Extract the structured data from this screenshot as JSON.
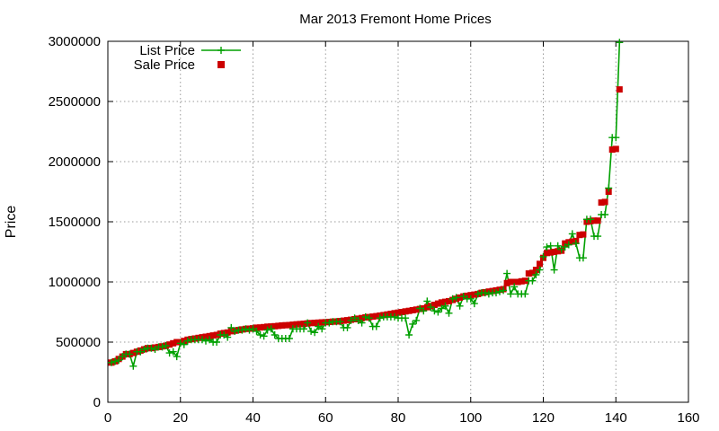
{
  "chart_data": {
    "type": "line",
    "title": "Mar 2013 Fremont Home Prices",
    "xlabel": "",
    "ylabel": "Price",
    "xlim": [
      0,
      160
    ],
    "ylim": [
      0,
      3000000
    ],
    "x_ticks": [
      "0",
      "20",
      "40",
      "60",
      "80",
      "100",
      "120",
      "140",
      "160"
    ],
    "y_ticks": [
      "0",
      "500000",
      "1000000",
      "1500000",
      "2000000",
      "2500000",
      "3000000"
    ],
    "grid": true,
    "legend_position": "top-left",
    "colors": {
      "list": "#00a000",
      "sale": "#cc0000"
    },
    "series": [
      {
        "name": "List Price",
        "marker": "plus",
        "values": [
          330000,
          340000,
          350000,
          380000,
          400000,
          400000,
          300000,
          420000,
          420000,
          440000,
          450000,
          450000,
          440000,
          460000,
          460000,
          470000,
          410000,
          420000,
          380000,
          490000,
          480000,
          510000,
          520000,
          520000,
          520000,
          520000,
          510000,
          520000,
          500000,
          500000,
          560000,
          560000,
          540000,
          620000,
          590000,
          600000,
          600000,
          610000,
          600000,
          610000,
          590000,
          560000,
          550000,
          600000,
          610000,
          560000,
          530000,
          530000,
          530000,
          530000,
          610000,
          610000,
          610000,
          610000,
          660000,
          590000,
          580000,
          630000,
          610000,
          660000,
          660000,
          670000,
          670000,
          670000,
          620000,
          620000,
          680000,
          700000,
          680000,
          660000,
          710000,
          700000,
          630000,
          630000,
          700000,
          710000,
          710000,
          710000,
          710000,
          700000,
          700000,
          700000,
          560000,
          650000,
          680000,
          780000,
          760000,
          840000,
          790000,
          760000,
          750000,
          780000,
          800000,
          740000,
          860000,
          870000,
          800000,
          880000,
          860000,
          860000,
          820000,
          900000,
          910000,
          910000,
          900000,
          910000,
          910000,
          920000,
          930000,
          1070000,
          900000,
          960000,
          900000,
          900000,
          900000,
          1010000,
          1010000,
          1060000,
          1100000,
          1210000,
          1290000,
          1300000,
          1100000,
          1300000,
          1270000,
          1290000,
          1310000,
          1400000,
          1320000,
          1200000,
          1200000,
          1520000,
          1520000,
          1380000,
          1380000,
          1560000,
          1560000,
          1780000,
          2200000,
          2200000,
          2990000
        ]
      },
      {
        "name": "Sale Price",
        "marker": "square",
        "values": [
          330000,
          340000,
          360000,
          380000,
          400000,
          400000,
          410000,
          420000,
          430000,
          440000,
          450000,
          450000,
          455000,
          460000,
          465000,
          470000,
          480000,
          490000,
          500000,
          500000,
          510000,
          520000,
          525000,
          530000,
          535000,
          540000,
          545000,
          550000,
          555000,
          560000,
          570000,
          575000,
          580000,
          590000,
          595000,
          600000,
          605000,
          610000,
          612000,
          615000,
          620000,
          622000,
          625000,
          628000,
          630000,
          632000,
          635000,
          638000,
          640000,
          642000,
          645000,
          648000,
          650000,
          652000,
          655000,
          658000,
          660000,
          662000,
          664000,
          666000,
          668000,
          670000,
          672000,
          675000,
          678000,
          682000,
          686000,
          690000,
          695000,
          700000,
          705000,
          708000,
          712000,
          716000,
          720000,
          725000,
          730000,
          735000,
          740000,
          745000,
          750000,
          755000,
          760000,
          765000,
          770000,
          775000,
          780000,
          790000,
          800000,
          810000,
          820000,
          830000,
          835000,
          840000,
          850000,
          860000,
          870000,
          880000,
          885000,
          890000,
          895000,
          900000,
          910000,
          915000,
          920000,
          925000,
          930000,
          935000,
          940000,
          990000,
          1000000,
          1000000,
          1000000,
          1005000,
          1010000,
          1070000,
          1075000,
          1100000,
          1150000,
          1200000,
          1240000,
          1245000,
          1250000,
          1255000,
          1260000,
          1320000,
          1330000,
          1335000,
          1340000,
          1390000,
          1395000,
          1500000,
          1505000,
          1510000,
          1510000,
          1660000,
          1665000,
          1750000,
          2100000,
          2105000,
          2600000
        ]
      }
    ]
  }
}
